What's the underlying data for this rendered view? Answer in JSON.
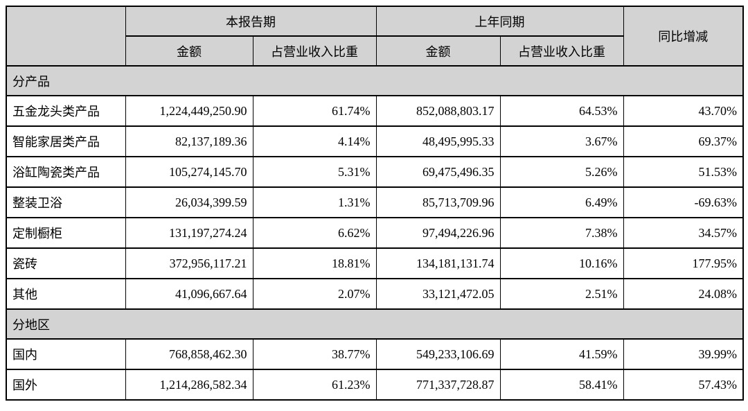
{
  "table": {
    "header": {
      "corner": "",
      "current_period": "本报告期",
      "prior_period": "上年同期",
      "yoy_change": "同比增减",
      "amount": "金额",
      "revenue_ratio": "占营业收入比重"
    },
    "sections": [
      {
        "label": "分产品",
        "rows": [
          {
            "name": "五金龙头类产品",
            "cur_amount": "1,224,449,250.90",
            "cur_ratio": "61.74%",
            "prior_amount": "852,088,803.17",
            "prior_ratio": "64.53%",
            "yoy": "43.70%"
          },
          {
            "name": "智能家居类产品",
            "cur_amount": "82,137,189.36",
            "cur_ratio": "4.14%",
            "prior_amount": "48,495,995.33",
            "prior_ratio": "3.67%",
            "yoy": "69.37%"
          },
          {
            "name": "浴缸陶瓷类产品",
            "cur_amount": "105,274,145.70",
            "cur_ratio": "5.31%",
            "prior_amount": "69,475,496.35",
            "prior_ratio": "5.26%",
            "yoy": "51.53%"
          },
          {
            "name": "整装卫浴",
            "cur_amount": "26,034,399.59",
            "cur_ratio": "1.31%",
            "prior_amount": "85,713,709.96",
            "prior_ratio": "6.49%",
            "yoy": "-69.63%"
          },
          {
            "name": "定制橱柜",
            "cur_amount": "131,197,274.24",
            "cur_ratio": "6.62%",
            "prior_amount": "97,494,226.96",
            "prior_ratio": "7.38%",
            "yoy": "34.57%"
          },
          {
            "name": "瓷砖",
            "cur_amount": "372,956,117.21",
            "cur_ratio": "18.81%",
            "prior_amount": "134,181,131.74",
            "prior_ratio": "10.16%",
            "yoy": "177.95%"
          },
          {
            "name": "其他",
            "cur_amount": "41,096,667.64",
            "cur_ratio": "2.07%",
            "prior_amount": "33,121,472.05",
            "prior_ratio": "2.51%",
            "yoy": "24.08%"
          }
        ]
      },
      {
        "label": "分地区",
        "rows": [
          {
            "name": "国内",
            "cur_amount": "768,858,462.30",
            "cur_ratio": "38.77%",
            "prior_amount": "549,233,106.69",
            "prior_ratio": "41.59%",
            "yoy": "39.99%"
          },
          {
            "name": "国外",
            "cur_amount": "1,214,286,582.34",
            "cur_ratio": "61.23%",
            "prior_amount": "771,337,728.87",
            "prior_ratio": "58.41%",
            "yoy": "57.43%"
          }
        ]
      }
    ]
  },
  "colors": {
    "header_bg": "#d3d3d3",
    "border": "#000000",
    "text": "#000000"
  }
}
